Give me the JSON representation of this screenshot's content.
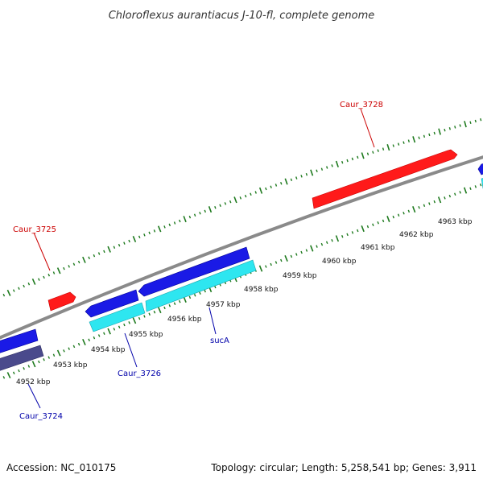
{
  "title": "Chloroflexus aurantiacus J-10-fl, complete genome",
  "footer": {
    "accession": "Accession: NC_010175",
    "topology": "Topology: circular; Length: 5,258,541 bp; Genes: 3,911"
  },
  "colors": {
    "backbone": "#8a8a8a",
    "ticks": "#1e7a1e",
    "forward_gene": "#ff1a1a",
    "reverse_gene": "#1a1ae6",
    "reverse_gene_alt": "#2ee6f0",
    "reverse_gene_dark": "#4a4a8c",
    "label_red": "#cc0000",
    "label_blue": "#0000aa"
  },
  "scale_labels": [
    {
      "kbp": 4952,
      "text": "4952 kbp"
    },
    {
      "kbp": 4953,
      "text": "4953 kbp"
    },
    {
      "kbp": 4954,
      "text": "4954 kbp"
    },
    {
      "kbp": 4955,
      "text": "4955 kbp"
    },
    {
      "kbp": 4956,
      "text": "4956 kbp"
    },
    {
      "kbp": 4957,
      "text": "4957 kbp"
    },
    {
      "kbp": 4958,
      "text": "4958 kbp"
    },
    {
      "kbp": 4959,
      "text": "4959 kbp"
    },
    {
      "kbp": 4960,
      "text": "4960 kbp"
    },
    {
      "kbp": 4961,
      "text": "4961 kbp"
    },
    {
      "kbp": 4962,
      "text": "4962 kbp"
    },
    {
      "kbp": 4963,
      "text": "4963 kbp"
    }
  ],
  "gene_labels": {
    "caur_3728": "Caur_3728",
    "caur_3725": "Caur_3725",
    "caur_3726": "Caur_3726",
    "suca": "sucA",
    "caur_3724": "Caur_3724"
  }
}
